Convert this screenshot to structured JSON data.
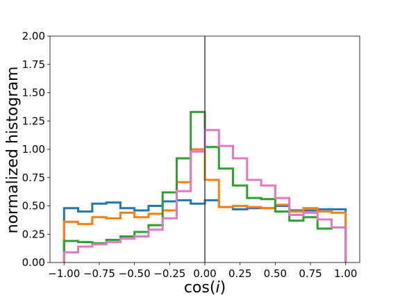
{
  "chart_data": {
    "type": "histogram",
    "title": "",
    "xlabel_text": "cos(",
    "xlabel_italic": "i",
    "xlabel_close": ")",
    "ylabel": "normalized histogram",
    "xlim": [
      -1.1,
      1.1
    ],
    "ylim": [
      0,
      2.0
    ],
    "grid": false,
    "legend": "none",
    "vline_x": 0.0,
    "vline_color": "#404040",
    "xticks": [
      -1.0,
      -0.75,
      -0.5,
      -0.25,
      0.0,
      0.25,
      0.5,
      0.75,
      1.0
    ],
    "xtick_labels": [
      "−1.00",
      "−0.75",
      "−0.50",
      "−0.25",
      "0.00",
      "0.25",
      "0.50",
      "0.75",
      "1.00"
    ],
    "yticks": [
      0,
      0.25,
      0.5,
      0.75,
      1.0,
      1.25,
      1.5,
      1.75,
      2.0
    ],
    "ytick_labels": [
      "0.00",
      "0.25",
      "0.50",
      "0.75",
      "1.00",
      "1.25",
      "1.50",
      "1.75",
      "2.00"
    ],
    "bin_edges": [
      -1.0,
      -0.9,
      -0.8,
      -0.7,
      -0.6,
      -0.5,
      -0.4,
      -0.3,
      -0.2,
      -0.1,
      0.0,
      0.1,
      0.2,
      0.3,
      0.4,
      0.5,
      0.6,
      0.7,
      0.8,
      0.9,
      1.0
    ],
    "series": [
      {
        "color": "#1f77b4",
        "values": [
          0.48,
          0.45,
          0.52,
          0.53,
          0.48,
          0.46,
          0.5,
          0.54,
          0.55,
          0.52,
          0.55,
          0.49,
          0.47,
          0.48,
          0.48,
          0.5,
          0.46,
          0.46,
          0.47,
          0.47
        ]
      },
      {
        "color": "#ff7f0e",
        "values": [
          0.36,
          0.34,
          0.4,
          0.39,
          0.44,
          0.4,
          0.43,
          0.46,
          0.71,
          1.0,
          0.73,
          0.49,
          0.5,
          0.49,
          0.48,
          0.51,
          0.45,
          0.48,
          0.45,
          0.44
        ]
      },
      {
        "color": "#2ca02c",
        "values": [
          0.19,
          0.18,
          0.17,
          0.2,
          0.23,
          0.27,
          0.33,
          0.62,
          0.92,
          1.33,
          1.02,
          0.83,
          0.68,
          0.57,
          0.56,
          0.45,
          0.37,
          0.4,
          0.3,
          0.31
        ]
      },
      {
        "color": "#e377c2",
        "values": [
          0.09,
          0.14,
          0.16,
          0.18,
          0.21,
          0.23,
          0.29,
          0.39,
          0.63,
          0.98,
          1.17,
          1.03,
          0.92,
          0.73,
          0.68,
          0.57,
          0.42,
          0.44,
          0.38,
          0.31
        ]
      }
    ]
  }
}
